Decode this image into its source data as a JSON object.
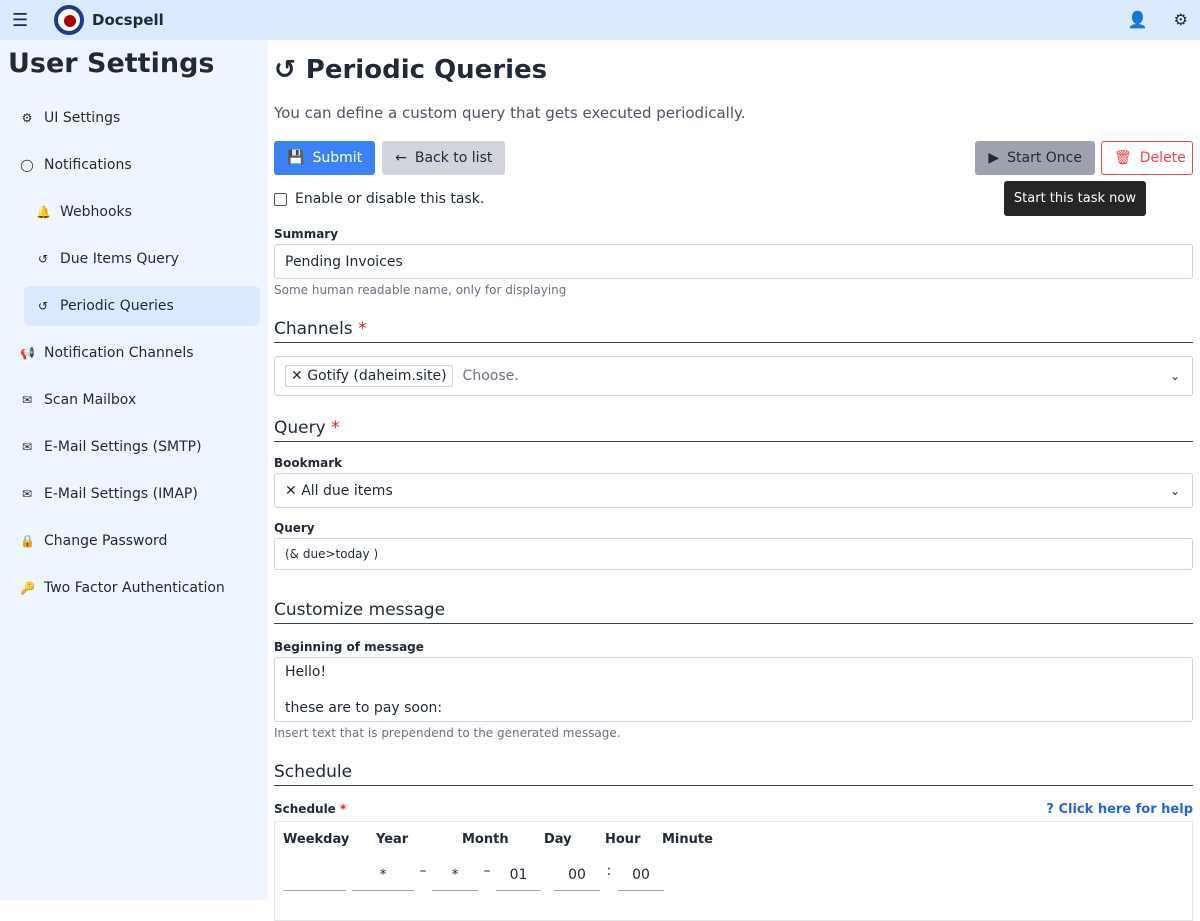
{
  "app": {
    "name": "Docspell"
  },
  "sidebar": {
    "title": "User Settings",
    "items": [
      {
        "label": "UI Settings",
        "icon": "⚙",
        "sub": false
      },
      {
        "label": "Notifications",
        "icon": "◯",
        "sub": false
      },
      {
        "label": "Webhooks",
        "icon": "🔔",
        "sub": true
      },
      {
        "label": "Due Items Query",
        "icon": "↺",
        "sub": true
      },
      {
        "label": "Periodic Queries",
        "icon": "↺",
        "sub": true,
        "active": true
      },
      {
        "label": "Notification Channels",
        "icon": "📢",
        "sub": false
      },
      {
        "label": "Scan Mailbox",
        "icon": "✉",
        "sub": false
      },
      {
        "label": "E-Mail Settings (SMTP)",
        "icon": "✉",
        "sub": false
      },
      {
        "label": "E-Mail Settings (IMAP)",
        "icon": "✉",
        "sub": false
      },
      {
        "label": "Change Password",
        "icon": "🔒",
        "sub": false
      },
      {
        "label": "Two Factor Authentication",
        "icon": "🔑",
        "sub": false
      }
    ]
  },
  "main": {
    "title": "Periodic Queries",
    "description": "You can define a custom query that gets executed periodically.",
    "submit": "Submit",
    "back": "Back to list",
    "start_once": "Start Once",
    "delete": "Delete",
    "tooltip": "Start this task now",
    "enable_label": "Enable or disable this task.",
    "summary_label": "Summary",
    "summary_value": "Pending Invoices",
    "summary_hint": "Some human readable name, only for displaying",
    "channels_heading": "Channels",
    "channel_tag": "Gotify (daheim.site)",
    "channel_placeholder": "Choose.",
    "query_heading": "Query",
    "bookmark_label": "Bookmark",
    "bookmark_value": "All due items",
    "query_label": "Query",
    "query_value": "(& due>today )",
    "customize_heading": "Customize message",
    "message_label": "Beginning of message",
    "message_value": "Hello!\n\nthese are to pay soon:",
    "message_hint": "Insert text that is prependend to the generated message.",
    "schedule_heading": "Schedule",
    "schedule_label": "Schedule",
    "help_link": "Click here for help",
    "schedule": {
      "headers": [
        "Weekday",
        "Year",
        "Month",
        "Day",
        "Hour",
        "Minute"
      ],
      "weekday": "",
      "year": "*",
      "month": "*",
      "day": "01",
      "hour": "00",
      "minute": "00"
    }
  }
}
